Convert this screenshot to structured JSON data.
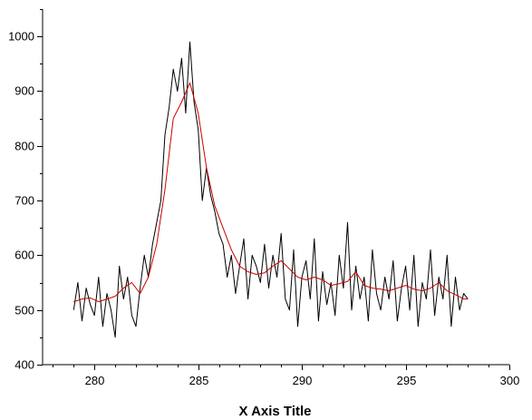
{
  "chart_data": {
    "type": "line",
    "title": "",
    "xlabel": "X Axis Title",
    "ylabel": "",
    "xlim": [
      277.5,
      300
    ],
    "ylim": [
      400,
      1050
    ],
    "x_ticks": [
      280,
      285,
      290,
      295,
      300
    ],
    "y_ticks": [
      400,
      500,
      600,
      700,
      800,
      900,
      1000
    ],
    "x_minor_step": 1,
    "y_minor_step": 50,
    "grid": false,
    "legend": "none",
    "series": [
      {
        "color": "#000000",
        "style": "noisy-raw",
        "x": [
          279.0,
          279.2,
          279.4,
          279.6,
          279.8,
          280.0,
          280.2,
          280.4,
          280.6,
          280.8,
          281.0,
          281.2,
          281.4,
          281.6,
          281.8,
          282.0,
          282.2,
          282.4,
          282.6,
          282.8,
          283.0,
          283.2,
          283.4,
          283.6,
          283.8,
          284.0,
          284.2,
          284.4,
          284.6,
          284.8,
          285.0,
          285.2,
          285.4,
          285.6,
          285.8,
          286.0,
          286.2,
          286.4,
          286.6,
          286.8,
          287.0,
          287.2,
          287.4,
          287.6,
          287.8,
          288.0,
          288.2,
          288.4,
          288.6,
          288.8,
          289.0,
          289.2,
          289.4,
          289.6,
          289.8,
          290.0,
          290.2,
          290.4,
          290.6,
          290.8,
          291.0,
          291.2,
          291.4,
          291.6,
          291.8,
          292.0,
          292.2,
          292.4,
          292.6,
          292.8,
          293.0,
          293.2,
          293.4,
          293.6,
          293.8,
          294.0,
          294.2,
          294.4,
          294.6,
          294.8,
          295.0,
          295.2,
          295.4,
          295.6,
          295.8,
          296.0,
          296.2,
          296.4,
          296.6,
          296.8,
          297.0,
          297.2,
          297.4,
          297.6,
          297.8,
          298.0
        ],
        "y": [
          500,
          550,
          480,
          540,
          510,
          490,
          560,
          470,
          530,
          500,
          450,
          580,
          520,
          560,
          490,
          470,
          540,
          600,
          560,
          620,
          660,
          700,
          820,
          870,
          940,
          900,
          960,
          860,
          990,
          880,
          830,
          700,
          760,
          710,
          680,
          640,
          620,
          560,
          600,
          530,
          580,
          630,
          520,
          600,
          580,
          550,
          620,
          540,
          600,
          560,
          640,
          520,
          500,
          610,
          470,
          560,
          590,
          520,
          630,
          480,
          570,
          510,
          550,
          490,
          600,
          540,
          660,
          500,
          580,
          520,
          560,
          480,
          610,
          530,
          500,
          560,
          520,
          590,
          480,
          540,
          580,
          500,
          600,
          470,
          550,
          520,
          610,
          490,
          560,
          520,
          600,
          470,
          560,
          500,
          530,
          520
        ],
        "name": ""
      },
      {
        "color": "#cc0000",
        "style": "smoothed",
        "x": [
          279.0,
          279.4,
          279.8,
          280.2,
          280.6,
          281.0,
          281.4,
          281.8,
          282.2,
          282.6,
          283.0,
          283.4,
          283.8,
          284.2,
          284.6,
          285.0,
          285.4,
          285.8,
          286.2,
          286.6,
          287.0,
          287.4,
          287.8,
          288.2,
          288.6,
          289.0,
          289.4,
          289.8,
          290.2,
          290.6,
          291.0,
          291.4,
          291.8,
          292.2,
          292.6,
          293.0,
          293.4,
          293.8,
          294.2,
          294.6,
          295.0,
          295.4,
          295.8,
          296.2,
          296.6,
          297.0,
          297.4,
          297.8,
          298.0
        ],
        "y": [
          515,
          520,
          522,
          515,
          520,
          525,
          540,
          550,
          530,
          560,
          620,
          720,
          850,
          880,
          915,
          860,
          760,
          690,
          650,
          610,
          580,
          570,
          565,
          568,
          580,
          590,
          575,
          560,
          555,
          560,
          555,
          545,
          548,
          552,
          570,
          545,
          540,
          538,
          535,
          540,
          545,
          538,
          535,
          540,
          550,
          535,
          528,
          520,
          520
        ],
        "name": ""
      }
    ]
  }
}
